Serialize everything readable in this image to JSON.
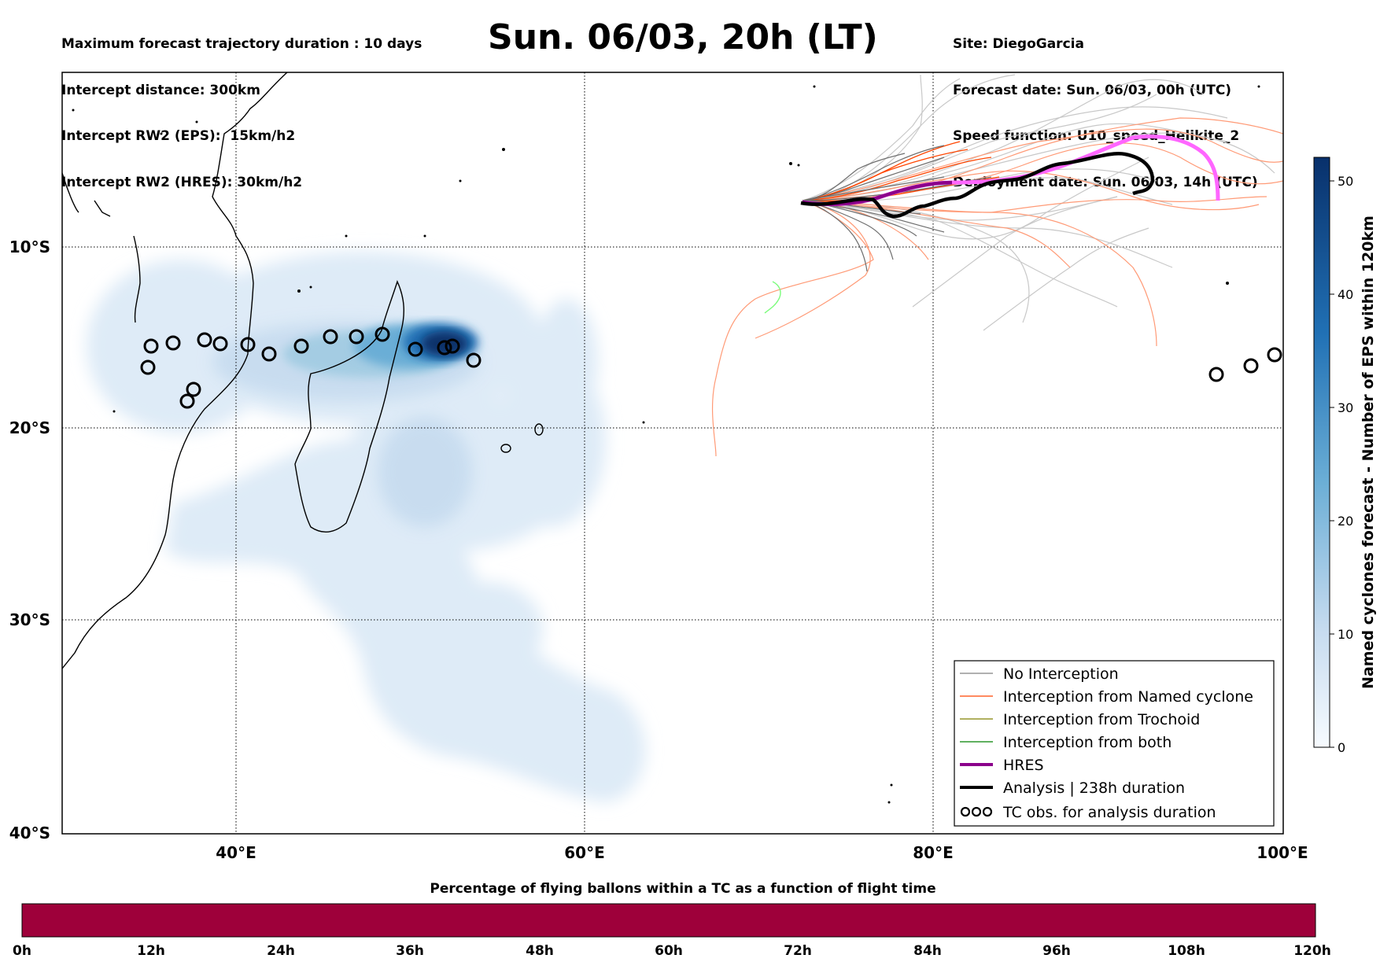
{
  "header_left": [
    "Maximum forecast trajectory duration : 10 days",
    "Intercept distance: 300km",
    "Intercept RW2 (EPS):  15km/h2",
    "Intercept RW2 (HRES): 30km/h2"
  ],
  "title": "Sun. 06/03, 20h (LT)",
  "header_right": [
    "Site: DiegoGarcia",
    "Forecast date: Sun. 06/03, 00h (UTC)",
    "Speed function: U10_speed_Helikite_2",
    "Deployment date: Sun. 06/03, 14h (UTC)"
  ],
  "map": {
    "lon_ticks": [
      "40°E",
      "60°E",
      "80°E",
      "100°E"
    ],
    "lat_ticks": [
      "10°S",
      "20°S",
      "30°S",
      "40°S"
    ]
  },
  "legend": {
    "items": [
      {
        "label": "No Interception",
        "color": "#808080"
      },
      {
        "label": "Interception from Named cyclone",
        "color": "#ff4500"
      },
      {
        "label": "Interception from Trochoid",
        "color": "#808000"
      },
      {
        "label": "Interception from both",
        "color": "#008000"
      },
      {
        "label": "HRES",
        "color": "#8b008b"
      },
      {
        "label": "Analysis | 238h duration",
        "color": "#000000"
      },
      {
        "label": "TC obs. for analysis duration",
        "symbol": "cyclone-icon"
      }
    ]
  },
  "colorbar_right": {
    "label": "Named cyclones forecast - Number of EPS within 120km",
    "ticks": [
      "0",
      "10",
      "20",
      "30",
      "40",
      "50"
    ],
    "colors": [
      "#f7fbff",
      "#08306b"
    ]
  },
  "bottom_bar": {
    "title": "Percentage of flying ballons within a TC as a function of flight time",
    "color": "#9e003a",
    "ticks": [
      "0h",
      "12h",
      "24h",
      "36h",
      "48h",
      "60h",
      "72h",
      "84h",
      "96h",
      "108h",
      "120h"
    ]
  }
}
